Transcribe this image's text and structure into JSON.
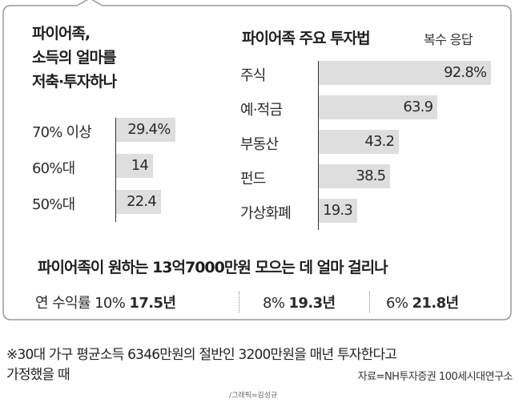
{
  "left_panel": {
    "title_lines": [
      "파이어족,",
      "소득의 얼마를",
      "저축·투자하나"
    ]
  },
  "right_panel": {
    "title": "파이어족 주요 투자법",
    "subtitle": "복수 응답"
  },
  "chart_data": [
    {
      "type": "bar",
      "orientation": "horizontal",
      "title": "파이어족, 소득의 얼마를 저축·투자하나",
      "categories": [
        "70% 이상",
        "60%대",
        "50%대"
      ],
      "values": [
        29.4,
        14,
        22.4
      ],
      "value_labels": [
        "29.4%",
        "14",
        "22.4"
      ],
      "xlim": [
        0,
        100
      ],
      "grid": false,
      "legend": "none"
    },
    {
      "type": "bar",
      "orientation": "horizontal",
      "title": "파이어족 주요 투자법",
      "subtitle": "복수 응답",
      "categories": [
        "주식",
        "예·적금",
        "부동산",
        "펀드",
        "가상화폐"
      ],
      "values": [
        92.8,
        63.9,
        43.2,
        38.5,
        19.3
      ],
      "value_labels": [
        "92.8%",
        "63.9",
        "43.2",
        "38.5",
        "19.3"
      ],
      "xlim": [
        0,
        100
      ],
      "grid": false,
      "legend": "none"
    }
  ],
  "bottom": {
    "title": "파이어족이 원하는 13억7000만원 모으는 데 얼마 걸리나",
    "scenarios": [
      {
        "label": "연 수익률 10%",
        "value": "17.5년"
      },
      {
        "label": "8%",
        "value": "19.3년"
      },
      {
        "label": "6%",
        "value": "21.8년"
      }
    ]
  },
  "footnote": {
    "line1": "※30대 가구 평균소득 6346만원의 절반인 3200만원을 매년 투자한다고",
    "line2": "가정했을 때",
    "source": "자료=NH투자증권 100세시대연구소",
    "credit": "/그래픽=김성규"
  },
  "colors": {
    "bar": "#dedede",
    "axis": "#333333",
    "frame": "#999999",
    "text": "#1e1e1e"
  }
}
